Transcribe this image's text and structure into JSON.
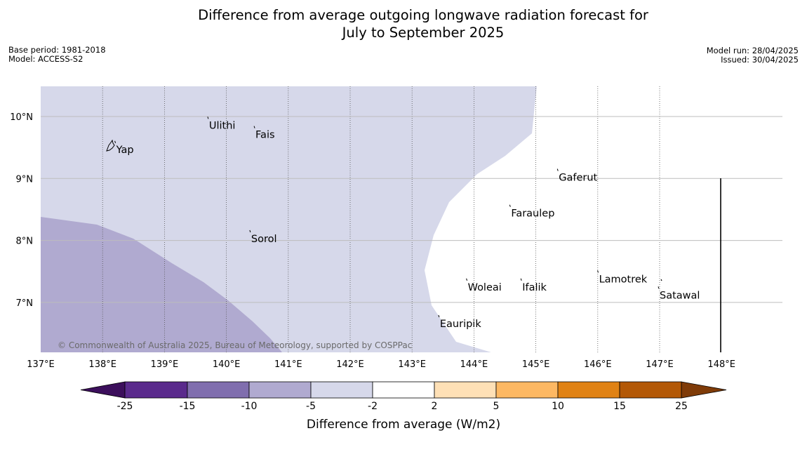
{
  "title": {
    "line1": "Difference from average outgoing longwave radiation forecast for",
    "line2": "July to September 2025"
  },
  "meta_left": {
    "base_period": "Base period: 1981-2018",
    "model": "Model: ACCESS-S2"
  },
  "meta_right": {
    "model_run": "Model run: 28/04/2025",
    "issued": "Issued: 30/04/2025"
  },
  "map": {
    "x_ticks": [
      {
        "lon": 137,
        "label": "137°E"
      },
      {
        "lon": 138,
        "label": "138°E"
      },
      {
        "lon": 139,
        "label": "139°E"
      },
      {
        "lon": 140,
        "label": "140°E"
      },
      {
        "lon": 141,
        "label": "141°E"
      },
      {
        "lon": 142,
        "label": "142°E"
      },
      {
        "lon": 143,
        "label": "143°E"
      },
      {
        "lon": 144,
        "label": "144°E"
      },
      {
        "lon": 145,
        "label": "145°E"
      },
      {
        "lon": 146,
        "label": "146°E"
      },
      {
        "lon": 147,
        "label": "147°E"
      },
      {
        "lon": 148,
        "label": "148°E"
      }
    ],
    "y_ticks": [
      {
        "lat": 10,
        "label": "10°N"
      },
      {
        "lat": 9,
        "label": "9°N"
      },
      {
        "lat": 8,
        "label": "8°N"
      },
      {
        "lat": 7,
        "label": "7°N"
      }
    ],
    "places": [
      {
        "name": "Yap",
        "lon": 138.22,
        "lat": 9.47
      },
      {
        "name": "Ulithi",
        "lon": 139.72,
        "lat": 9.86
      },
      {
        "name": "Fais",
        "lon": 140.47,
        "lat": 9.71
      },
      {
        "name": "Gaferut",
        "lon": 145.37,
        "lat": 9.02
      },
      {
        "name": "Faraulep",
        "lon": 144.6,
        "lat": 8.44
      },
      {
        "name": "Sorol",
        "lon": 140.4,
        "lat": 8.03
      },
      {
        "name": "Lamotrek",
        "lon": 146.02,
        "lat": 7.38
      },
      {
        "name": "Woleai",
        "lon": 143.9,
        "lat": 7.25
      },
      {
        "name": "Ifalik",
        "lon": 144.78,
        "lat": 7.25
      },
      {
        "name": "Satawal",
        "lon": 147.0,
        "lat": 7.12
      },
      {
        "name": "Eauripik",
        "lon": 143.45,
        "lat": 6.66
      }
    ],
    "credit": "© Commonwealth of Australia 2025, Bureau of Meteorology, supported by COSPPac",
    "colors": {
      "band_minus5_minus2": "#d6d8ea",
      "band_minus10_minus5": "#b0aad0"
    }
  },
  "colorbar": {
    "title": "Difference from average (W/m2)",
    "ticks": [
      "-25",
      "-15",
      "-10",
      "-5",
      "-2",
      "2",
      "5",
      "10",
      "15",
      "25"
    ],
    "colors": [
      "#3c0f5c",
      "#5a2a8c",
      "#806eae",
      "#b0aad0",
      "#d6d8ea",
      "#ffffff",
      "#fee0b6",
      "#fdb863",
      "#e08214",
      "#b35806",
      "#7f3b08"
    ]
  }
}
